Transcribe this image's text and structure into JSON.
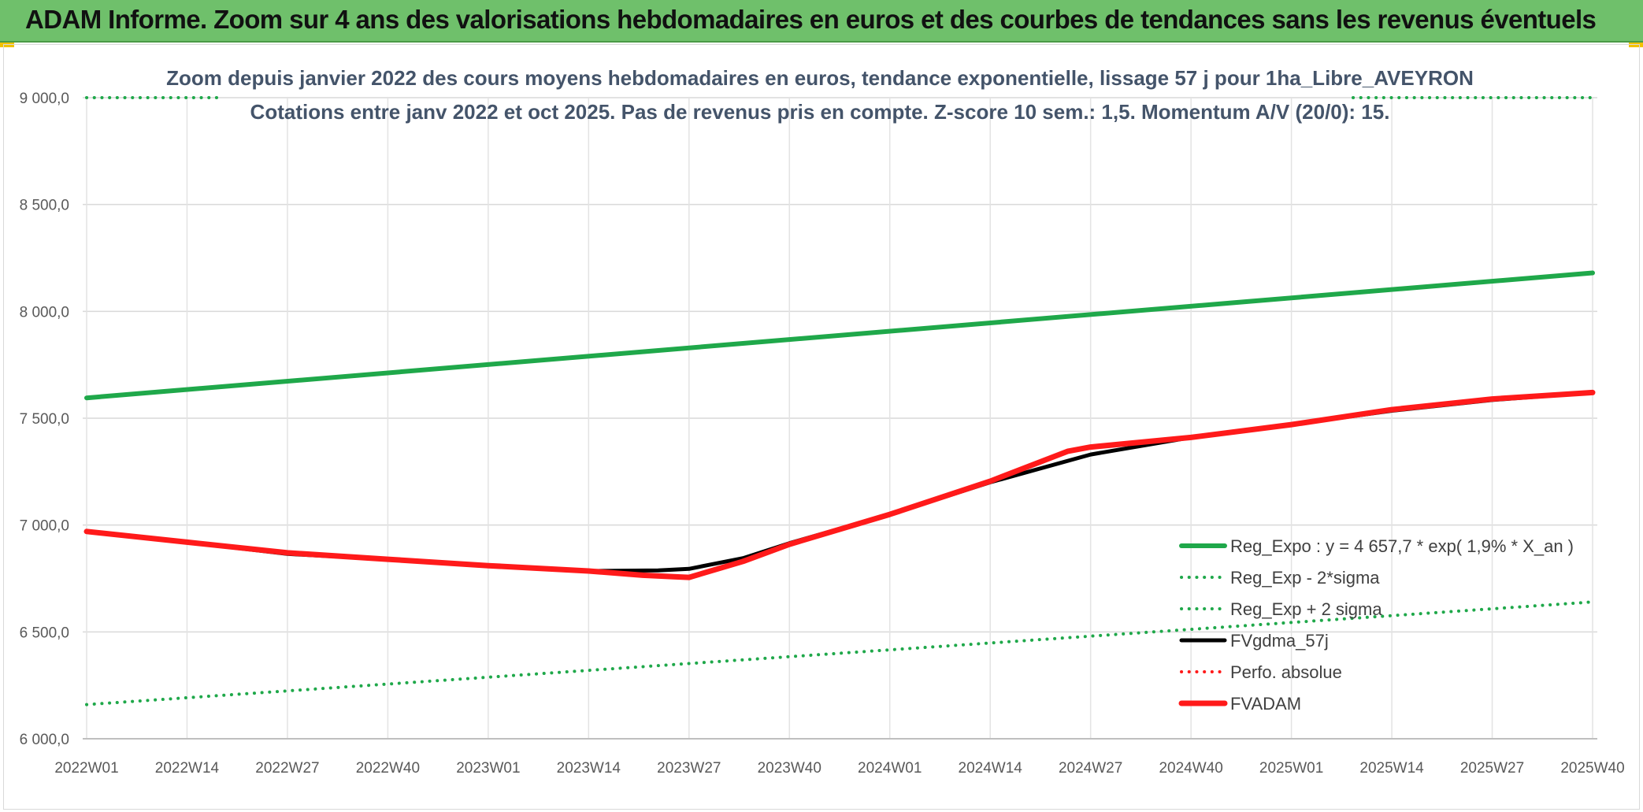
{
  "banner": {
    "title": "ADAM Informe. Zoom sur 4 ans des valorisations hebdomadaires en euros et des courbes de tendances sans les revenus éventuels",
    "color": "#6fc06b"
  },
  "chart_data": {
    "type": "line",
    "title": "Zoom depuis janvier 2022 des cours moyens hebdomadaires en euros, tendance exponentielle, lissage 57 j pour 1ha_Libre_AVEYRON",
    "subtitle": "Cotations entre janv 2022 et oct 2025. Pas de revenus pris en compte. Z-score 10 sem.: 1,5. Momentum A/V (20/0): 15.",
    "xlabel": "",
    "ylabel": "",
    "ylim": [
      6000,
      9000
    ],
    "y_ticks": [
      {
        "value": 9000,
        "label": "9 000,0"
      },
      {
        "value": 8500,
        "label": "8 500,0"
      },
      {
        "value": 8000,
        "label": "8 000,0"
      },
      {
        "value": 7500,
        "label": "7 500,0"
      },
      {
        "value": 7000,
        "label": "7 000,0"
      },
      {
        "value": 6500,
        "label": "6 500,0"
      },
      {
        "value": 6000,
        "label": "6 000,0"
      }
    ],
    "x_ticks": [
      "2022W01",
      "2022W14",
      "2022W27",
      "2022W40",
      "2023W01",
      "2023W14",
      "2023W27",
      "2023W40",
      "2024W01",
      "2024W14",
      "2024W27",
      "2024W40",
      "2025W01",
      "2025W14",
      "2025W27",
      "2025W40"
    ],
    "x_range": [
      0,
      197
    ],
    "grid": true,
    "legend_position": "bottom-right",
    "series": [
      {
        "name": "Reg_Expo : y = 4 657,7 * exp( 1,9% *  X_an )",
        "color": "#1fa84a",
        "style": "solid",
        "width": 6,
        "x": [
          0,
          195
        ],
        "values": [
          7595,
          8180
        ]
      },
      {
        "name": "Reg_Exp - 2*sigma",
        "color": "#1fa84a",
        "style": "dotted",
        "width": 4,
        "x": [
          0,
          195
        ],
        "values": [
          6160,
          6640
        ]
      },
      {
        "name": "Reg_Exp + 2 sigma",
        "color": "#1fa84a",
        "style": "dotted",
        "width": 4,
        "segments": [
          {
            "x": [
              0,
              17
            ],
            "values": [
              9000,
              9000
            ]
          },
          {
            "x": [
              164,
              195
            ],
            "values": [
              9000,
              9000
            ]
          }
        ]
      },
      {
        "name": "FVgdma_57j",
        "color": "#000000",
        "style": "solid",
        "width": 5,
        "x": [
          0,
          13,
          26,
          39,
          52,
          65,
          74,
          78,
          85,
          91,
          104,
          117,
          130,
          143,
          156,
          169,
          182,
          195
        ],
        "values": [
          6970,
          6920,
          6865,
          6840,
          6810,
          6785,
          6788,
          6795,
          6845,
          6915,
          7050,
          7200,
          7330,
          7410,
          7470,
          7535,
          7585,
          7620
        ]
      },
      {
        "name": "Perfo. absolue",
        "color": "#ff1a1a",
        "style": "dotted",
        "width": 4,
        "x": [],
        "values": []
      },
      {
        "name": "FVADAM",
        "color": "#ff1a1a",
        "style": "solid",
        "width": 7,
        "x": [
          0,
          13,
          26,
          39,
          52,
          65,
          72,
          76,
          78,
          85,
          91,
          104,
          117,
          127,
          130,
          143,
          156,
          169,
          182,
          195
        ],
        "values": [
          6970,
          6920,
          6870,
          6840,
          6810,
          6785,
          6765,
          6758,
          6755,
          6830,
          6910,
          7050,
          7205,
          7345,
          7365,
          7410,
          7470,
          7540,
          7590,
          7620
        ]
      }
    ]
  }
}
